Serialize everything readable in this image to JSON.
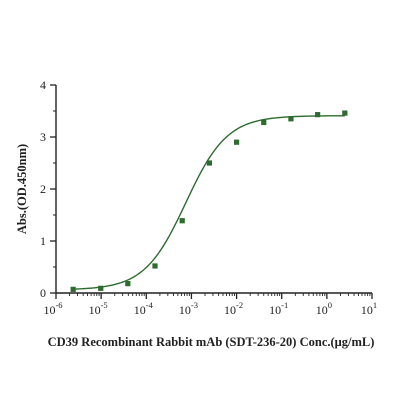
{
  "chart_data": {
    "type": "scatter",
    "xlabel": "CD39 Recombinant Rabbit mAb (SDT-236-20)  Conc.(μg/mL)",
    "ylabel": "Abs.(OD.450nm)",
    "x_scale": "log",
    "xlim": [
      1e-06,
      10
    ],
    "ylim": [
      0,
      4
    ],
    "x_ticks": [
      {
        "value": 1e-06,
        "base": "10",
        "exp": "-6"
      },
      {
        "value": 1e-05,
        "base": "10",
        "exp": "-5"
      },
      {
        "value": 0.0001,
        "base": "10",
        "exp": "-4"
      },
      {
        "value": 0.001,
        "base": "10",
        "exp": "-3"
      },
      {
        "value": 0.01,
        "base": "10",
        "exp": "-2"
      },
      {
        "value": 0.1,
        "base": "10",
        "exp": "-1"
      },
      {
        "value": 1,
        "base": "10",
        "exp": "0"
      },
      {
        "value": 10,
        "base": "10",
        "exp": "1"
      }
    ],
    "y_ticks": [
      {
        "value": 0,
        "label": "0"
      },
      {
        "value": 1,
        "label": "1"
      },
      {
        "value": 2,
        "label": "2"
      },
      {
        "value": 3,
        "label": "3"
      },
      {
        "value": 4,
        "label": "4"
      }
    ],
    "grid": false,
    "series": [
      {
        "color": "#2e6b2e",
        "points": [
          {
            "x": 2.4e-06,
            "y": 0.07
          },
          {
            "x": 9.8e-06,
            "y": 0.09
          },
          {
            "x": 3.9e-05,
            "y": 0.18
          },
          {
            "x": 0.000156,
            "y": 0.52
          },
          {
            "x": 0.000625,
            "y": 1.39
          },
          {
            "x": 0.0025,
            "y": 2.5
          },
          {
            "x": 0.01,
            "y": 2.9
          },
          {
            "x": 0.04,
            "y": 3.28
          },
          {
            "x": 0.16,
            "y": 3.35
          },
          {
            "x": 0.625,
            "y": 3.43
          },
          {
            "x": 2.5,
            "y": 3.46
          }
        ],
        "fit": {
          "model": "4PL",
          "bottom": 0.06,
          "top": 3.41,
          "ec50": 0.00075,
          "hill": 0.95,
          "x_range": [
            2.4e-06,
            2.5
          ]
        }
      }
    ]
  }
}
